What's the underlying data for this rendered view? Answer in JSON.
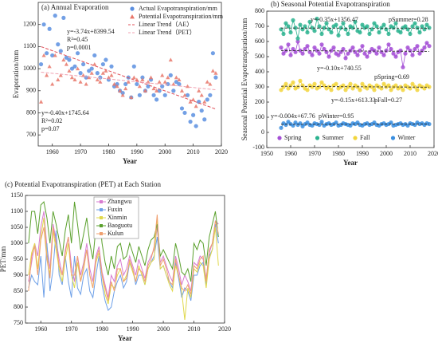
{
  "chart_data": [
    {
      "type": "scatter",
      "title": "(a) Annual Evaporation",
      "xlabel": "Year",
      "ylabel": "Evaporation/mm",
      "x": [
        1956,
        1957,
        1958,
        1959,
        1960,
        1961,
        1962,
        1963,
        1964,
        1965,
        1966,
        1967,
        1968,
        1969,
        1970,
        1971,
        1972,
        1973,
        1974,
        1975,
        1976,
        1977,
        1978,
        1979,
        1980,
        1981,
        1982,
        1983,
        1984,
        1985,
        1986,
        1987,
        1988,
        1989,
        1990,
        1991,
        1992,
        1993,
        1994,
        1995,
        1996,
        1997,
        1998,
        1999,
        2000,
        2001,
        2002,
        2003,
        2004,
        2005,
        2006,
        2007,
        2008,
        2009,
        2010,
        2011,
        2012,
        2013,
        2014,
        2015,
        2016,
        2017,
        2018
      ],
      "series": [
        {
          "name": "Actual Evapotranspiration/mm",
          "color": "#5b8fe0",
          "marker": "circle",
          "values": [
            1020,
            1200,
            1070,
            1180,
            1060,
            1240,
            1110,
            1080,
            1230,
            1050,
            1040,
            1000,
            1010,
            1070,
            980,
            1020,
            960,
            990,
            1000,
            1060,
            980,
            960,
            1020,
            1040,
            950,
            1010,
            920,
            930,
            900,
            890,
            930,
            960,
            870,
            1010,
            930,
            880,
            960,
            900,
            920,
            950,
            880,
            860,
            900,
            920,
            880,
            930,
            970,
            900,
            940,
            930,
            820,
            800,
            880,
            760,
            790,
            740,
            850,
            810,
            770,
            860,
            880,
            1070,
            960
          ]
        },
        {
          "name": "Potential Evapotranspiration/mm",
          "color": "#e8776a",
          "marker": "triangle",
          "values": [
            850,
            1060,
            970,
            1010,
            930,
            1060,
            950,
            970,
            1040,
            1020,
            990,
            960,
            950,
            1000,
            940,
            970,
            930,
            960,
            980,
            1020,
            950,
            940,
            980,
            990,
            960,
            970,
            930,
            920,
            900,
            880,
            910,
            940,
            870,
            960,
            950,
            920,
            950,
            900,
            940,
            960,
            910,
            900,
            940,
            970,
            940,
            960,
            1040,
            930,
            960,
            950,
            900,
            880,
            920,
            850,
            860,
            830,
            900,
            880,
            850,
            940,
            930,
            990,
            980
          ]
        }
      ],
      "trend_lines": [
        {
          "name": "Linear Trend（AE）",
          "series": 0,
          "color": "#e0505a"
        },
        {
          "name": "Linear Trend（PET）",
          "series": 1,
          "color": "#f0a0b0"
        }
      ],
      "annotations": [
        "y=-3.74x+8399.54",
        "R²=0.45",
        "p=0.0001",
        "y=-0.40x+1745.64",
        "R²=0.02",
        "p=0.07"
      ],
      "xlim": [
        1955,
        2020
      ],
      "xticks": [
        1960,
        1970,
        1980,
        1990,
        2000,
        2010,
        2020
      ],
      "ylim": [
        650,
        1300
      ],
      "yticks": [
        700,
        800,
        900,
        1000,
        1100,
        1200
      ],
      "legend": "upper right"
    },
    {
      "type": "line",
      "title": "(b) Seasonal Potential Evapotranspiration",
      "xlabel": "Year",
      "ylabel": "Seasonal Potential Evapotranspiration/mm",
      "x": [
        1956,
        1957,
        1958,
        1959,
        1960,
        1961,
        1962,
        1963,
        1964,
        1965,
        1966,
        1967,
        1968,
        1969,
        1970,
        1971,
        1972,
        1973,
        1974,
        1975,
        1976,
        1977,
        1978,
        1979,
        1980,
        1981,
        1982,
        1983,
        1984,
        1985,
        1986,
        1987,
        1988,
        1989,
        1990,
        1991,
        1992,
        1993,
        1994,
        1995,
        1996,
        1997,
        1998,
        1999,
        2000,
        2001,
        2002,
        2003,
        2004,
        2005,
        2006,
        2007,
        2008,
        2009,
        2010,
        2011,
        2012,
        2013,
        2014,
        2015,
        2016,
        2017,
        2018
      ],
      "markers": true,
      "trend": true,
      "trend_color": "#333333",
      "series": [
        {
          "name": "Spring",
          "color": "#a44fd6",
          "values": [
            560,
            520,
            540,
            580,
            510,
            550,
            530,
            600,
            540,
            520,
            550,
            570,
            530,
            510,
            560,
            540,
            520,
            580,
            550,
            530,
            500,
            540,
            560,
            520,
            510,
            530,
            550,
            490,
            520,
            540,
            560,
            530,
            510,
            540,
            570,
            520,
            500,
            530,
            550,
            540,
            520,
            560,
            530,
            510,
            540,
            580,
            550,
            520,
            500,
            530,
            540,
            430,
            520,
            560,
            540,
            510,
            550,
            570,
            520,
            540,
            560,
            590,
            570
          ]
        },
        {
          "name": "Summer",
          "color": "#2bb38f",
          "values": [
            680,
            650,
            720,
            700,
            660,
            740,
            690,
            620,
            710,
            680,
            700,
            660,
            730,
            690,
            670,
            750,
            700,
            650,
            690,
            720,
            680,
            660,
            700,
            710,
            640,
            690,
            720,
            680,
            650,
            700,
            690,
            730,
            670,
            660,
            710,
            690,
            700,
            650,
            680,
            720,
            700,
            660,
            690,
            710,
            680,
            650,
            700,
            690,
            720,
            670,
            660,
            690,
            700,
            680,
            650,
            700,
            720,
            690,
            660,
            700,
            680,
            710,
            690
          ]
        },
        {
          "name": "Fall",
          "color": "#f2d53c",
          "values": [
            280,
            300,
            320,
            290,
            310,
            330,
            290,
            300,
            340,
            310,
            290,
            280,
            310,
            300,
            320,
            290,
            300,
            330,
            310,
            290,
            300,
            280,
            310,
            320,
            290,
            300,
            310,
            280,
            300,
            320,
            290,
            310,
            300,
            280,
            320,
            300,
            290,
            310,
            300,
            280,
            310,
            300,
            290,
            320,
            300,
            310,
            280,
            300,
            310,
            290,
            300,
            280,
            310,
            300,
            290,
            320,
            300,
            280,
            310,
            300,
            290,
            310,
            300
          ]
        },
        {
          "name": "Winter",
          "color": "#3b8fe0",
          "values": [
            30,
            60,
            50,
            70,
            55,
            45,
            65,
            50,
            60,
            40,
            55,
            65,
            50,
            45,
            60,
            55,
            50,
            70,
            45,
            55,
            60,
            50,
            55,
            65,
            45,
            50,
            60,
            55,
            50,
            45,
            60,
            55,
            65,
            50,
            45,
            55,
            60,
            50,
            55,
            65,
            50,
            45,
            55,
            60,
            50,
            55,
            65,
            45,
            50,
            55,
            60,
            50,
            55,
            45,
            60,
            55,
            50,
            65,
            55,
            60,
            50,
            60,
            55
          ]
        }
      ],
      "annotations": [
        "y=-0.35x+1356.47",
        "pSummer=0.28",
        "y=-0.10x+740.55",
        "pSpring=0.69",
        "y=-0.15x+613.33",
        "pFall=0.27",
        "y=-0.004x+67.76",
        "pWinter=0.95"
      ],
      "xlim": [
        1950,
        2020
      ],
      "xticks": [
        1950,
        1960,
        1970,
        1980,
        1990,
        2000,
        2010,
        2020
      ],
      "ylim": [
        -100,
        800
      ],
      "yticks": [
        -100,
        0,
        100,
        200,
        300,
        400,
        500,
        600,
        700,
        800
      ],
      "legend": "lower center"
    },
    {
      "type": "line",
      "title": "(c) Potential Evapotranspiration (PET) at Each Station",
      "xlabel": "Year",
      "ylabel": "PET/mm",
      "x": [
        1956,
        1957,
        1958,
        1959,
        1960,
        1961,
        1962,
        1963,
        1964,
        1965,
        1966,
        1967,
        1968,
        1969,
        1970,
        1971,
        1972,
        1973,
        1974,
        1975,
        1976,
        1977,
        1978,
        1979,
        1980,
        1981,
        1982,
        1983,
        1984,
        1985,
        1986,
        1987,
        1988,
        1989,
        1990,
        1991,
        1992,
        1993,
        1994,
        1995,
        1996,
        1997,
        1998,
        1999,
        2000,
        2001,
        2002,
        2003,
        2004,
        2005,
        2006,
        2007,
        2008,
        2009,
        2010,
        2011,
        2012,
        2013,
        2014,
        2015,
        2016,
        2017,
        2018
      ],
      "markers": false,
      "trend": false,
      "series": [
        {
          "name": "Zhangwu",
          "color": "#d77bd0",
          "values": [
            880,
            940,
            1000,
            960,
            1050,
            1100,
            990,
            920,
            1060,
            1010,
            950,
            900,
            980,
            1020,
            930,
            880,
            960,
            900,
            940,
            1000,
            920,
            880,
            960,
            990,
            910,
            870,
            830,
            900,
            880,
            930,
            950,
            900,
            920,
            960,
            930,
            900,
            950,
            920,
            890,
            940,
            960,
            980,
            1050,
            940,
            960,
            930,
            900,
            880,
            960,
            920,
            870,
            900,
            880,
            850,
            940,
            930,
            960,
            950,
            890,
            970,
            1000,
            1070,
            1060
          ]
        },
        {
          "name": "Fuxin",
          "color": "#6ea0e8",
          "values": [
            860,
            900,
            880,
            870,
            960,
            830,
            1000,
            850,
            920,
            1040,
            900,
            870,
            960,
            880,
            830,
            960,
            860,
            840,
            900,
            920,
            850,
            830,
            900,
            960,
            870,
            820,
            790,
            800,
            850,
            880,
            900,
            860,
            880,
            940,
            920,
            870,
            900,
            900,
            870,
            920,
            940,
            960,
            1020,
            920,
            930,
            900,
            880,
            860,
            940,
            890,
            830,
            860,
            850,
            820,
            900,
            900,
            930,
            940,
            870,
            960,
            980,
            1060,
            1000
          ]
        },
        {
          "name": "Xinmin",
          "color": "#e0d84a",
          "values": [
            900,
            970,
            1000,
            920,
            1020,
            1080,
            960,
            900,
            1040,
            980,
            920,
            880,
            950,
            1000,
            900,
            860,
            940,
            880,
            930,
            980,
            900,
            860,
            940,
            970,
            900,
            840,
            810,
            870,
            860,
            900,
            920,
            880,
            900,
            940,
            910,
            880,
            930,
            900,
            870,
            920,
            940,
            950,
            1080,
            920,
            930,
            900,
            870,
            850,
            930,
            900,
            850,
            760,
            860,
            830,
            920,
            910,
            940,
            930,
            860,
            950,
            980,
            1050,
            930
          ]
        },
        {
          "name": "Baoguotu",
          "color": "#5aa02c",
          "values": [
            1000,
            1100,
            1100,
            1030,
            1120,
            1130,
            1080,
            1000,
            1100,
            1060,
            1010,
            960,
            1040,
            1090,
            1000,
            1130,
            1060,
            980,
            1030,
            1080,
            1000,
            950,
            1050,
            1100,
            1000,
            940,
            900,
            960,
            920,
            990,
            1000,
            950,
            960,
            1000,
            970,
            940,
            990,
            960,
            930,
            980,
            1010,
            1020,
            1060,
            960,
            980,
            960,
            940,
            920,
            1000,
            960,
            910,
            900,
            920,
            880,
            1000,
            980,
            1010,
            1000,
            930,
            1020,
            1060,
            1100,
            1020
          ]
        },
        {
          "name": "Kulun",
          "color": "#f0a070",
          "values": [
            850,
            960,
            990,
            900,
            1010,
            1050,
            950,
            890,
            1050,
            1000,
            930,
            900,
            970,
            1020,
            900,
            900,
            960,
            880,
            920,
            980,
            900,
            860,
            950,
            980,
            900,
            860,
            820,
            880,
            850,
            920,
            920,
            880,
            890,
            950,
            920,
            880,
            920,
            910,
            880,
            930,
            950,
            990,
            1090,
            930,
            950,
            920,
            880,
            870,
            950,
            900,
            860,
            850,
            870,
            840,
            930,
            920,
            950,
            960,
            880,
            980,
            1000,
            1070,
            1030
          ]
        }
      ],
      "xlim": [
        1955,
        2020
      ],
      "xticks": [
        1960,
        1970,
        1980,
        1990,
        2000,
        2010,
        2020
      ],
      "ylim": [
        750,
        1150
      ],
      "yticks": [
        750,
        800,
        850,
        900,
        950,
        1000,
        1050,
        1100,
        1150
      ],
      "legend": "upper center"
    }
  ]
}
